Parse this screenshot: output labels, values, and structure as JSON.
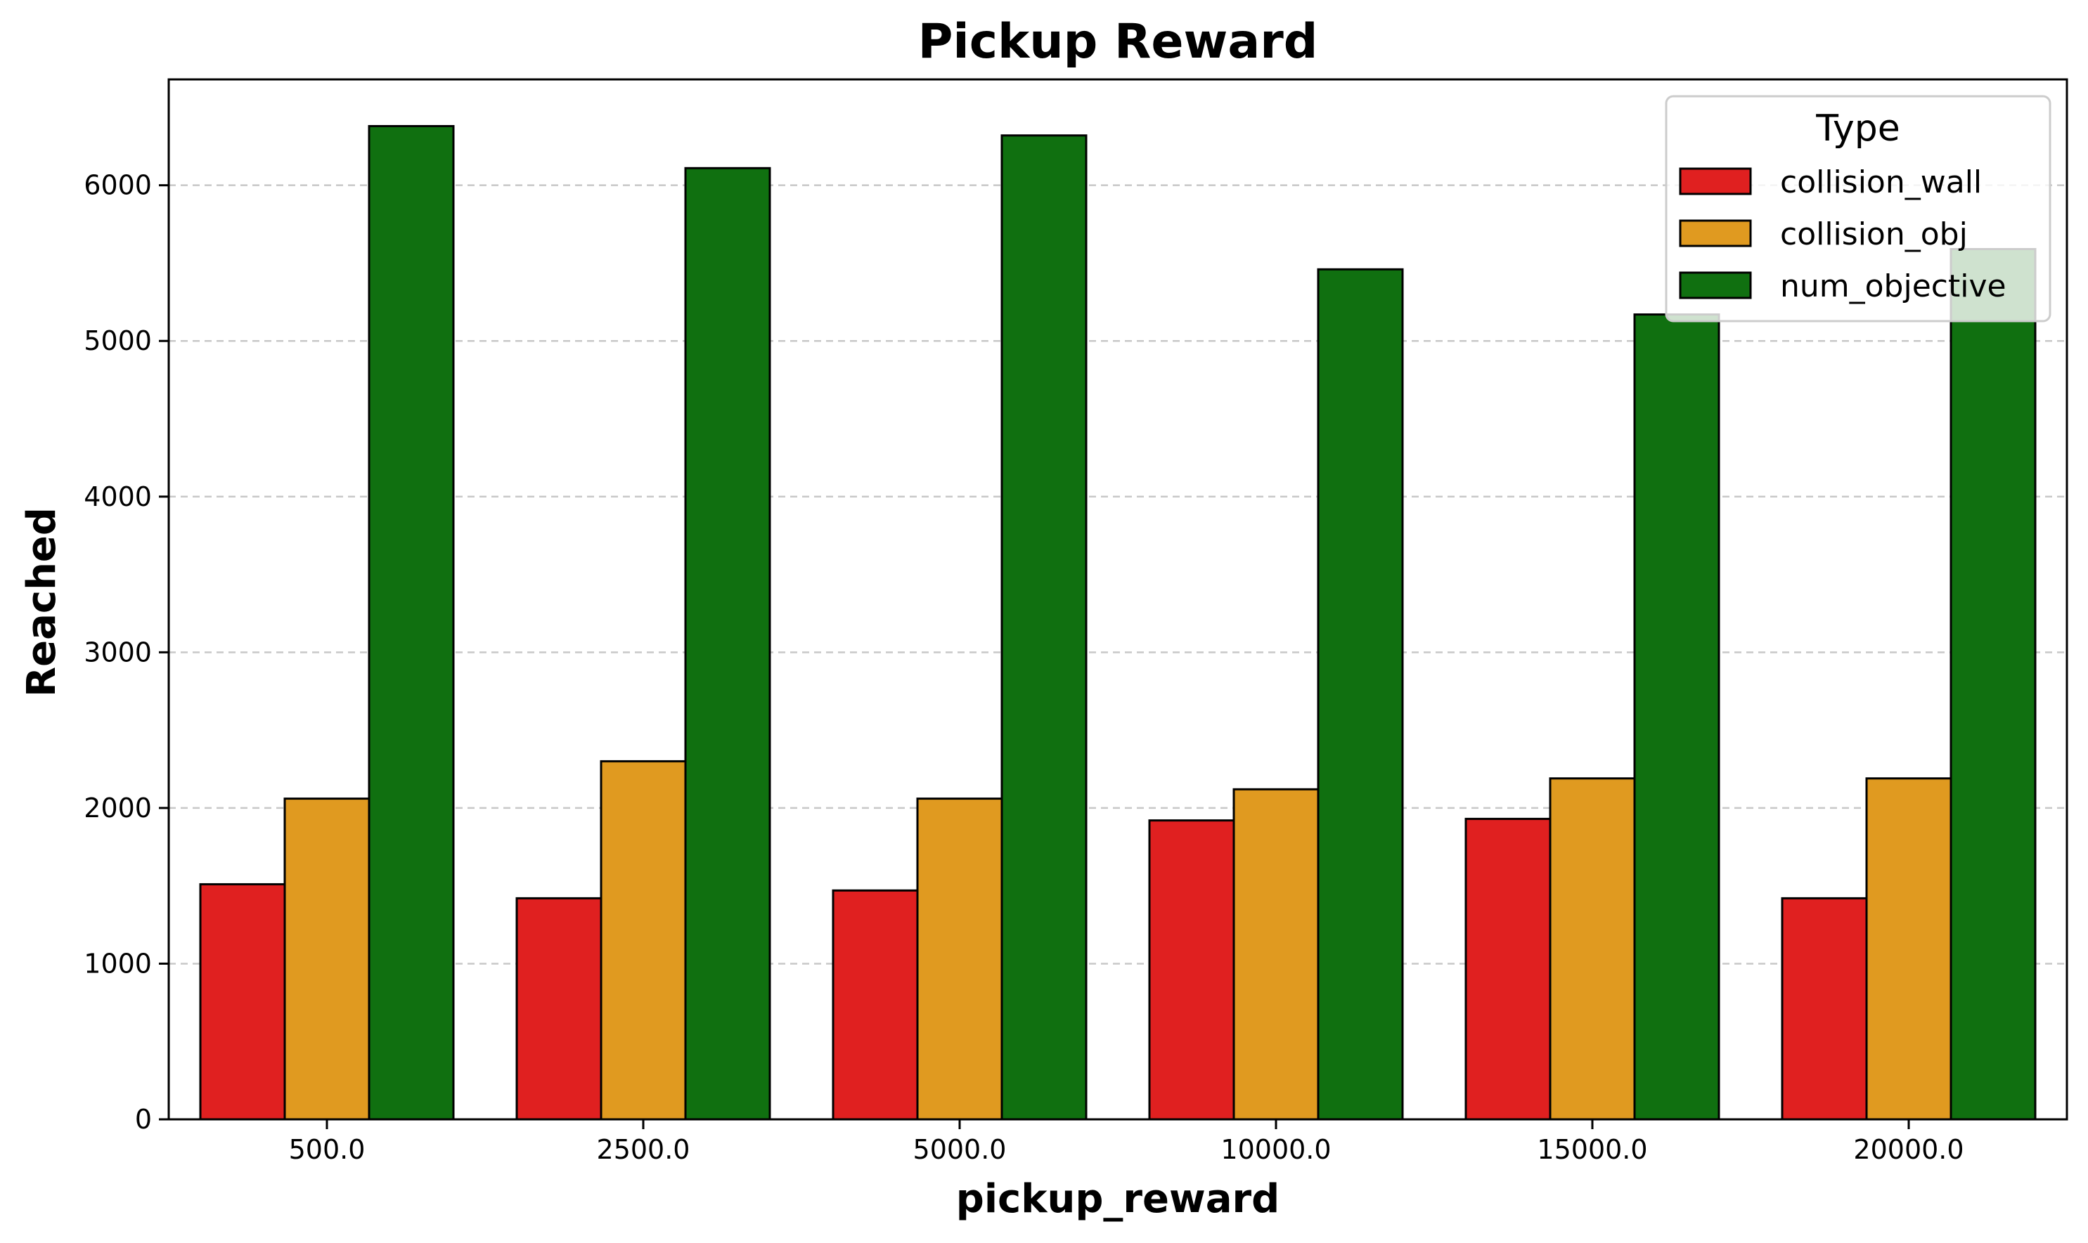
{
  "chart_data": {
    "type": "bar",
    "title": "Pickup Reward",
    "xlabel": "pickup_reward",
    "ylabel": "Reached",
    "categories": [
      "500.0",
      "2500.0",
      "5000.0",
      "10000.0",
      "15000.0",
      "20000.0"
    ],
    "series": [
      {
        "name": "collision_wall",
        "color": "#e02020",
        "values": [
          1510,
          1420,
          1470,
          1920,
          1930,
          1420
        ]
      },
      {
        "name": "collision_obj",
        "color": "#e09a20",
        "values": [
          2060,
          2300,
          2060,
          2120,
          2190,
          2190
        ]
      },
      {
        "name": "num_objective",
        "color": "#107010",
        "values": [
          6380,
          6110,
          6320,
          5460,
          5170,
          5590
        ]
      }
    ],
    "ylim": [
      0,
      6680
    ],
    "yticks": [
      0,
      1000,
      2000,
      3000,
      4000,
      5000,
      6000
    ],
    "grid": "y-dashed",
    "legend": {
      "title": "Type",
      "placement": "top-right"
    }
  }
}
